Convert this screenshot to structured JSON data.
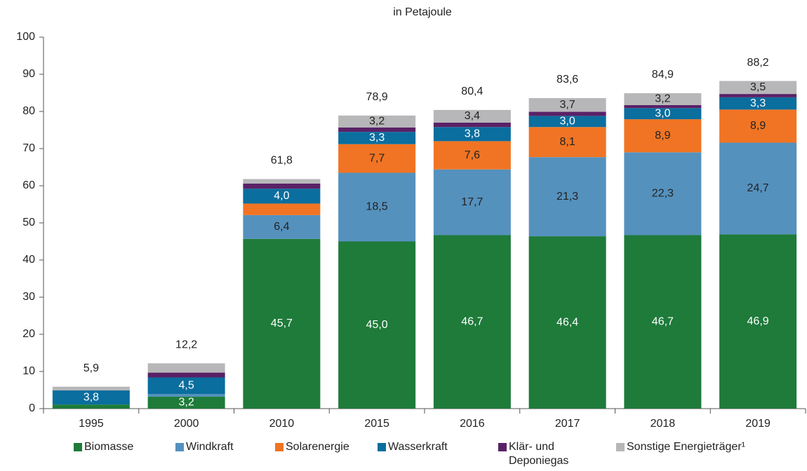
{
  "chart_data": {
    "type": "bar",
    "stacked": true,
    "subtitle": "in Petajoule",
    "categories": [
      "1995",
      "2000",
      "2010",
      "2015",
      "2016",
      "2017",
      "2018",
      "2019"
    ],
    "series": [
      {
        "name": "Biomasse",
        "color": "#1e7b3a",
        "values": [
          1.1,
          3.2,
          45.7,
          45.0,
          46.7,
          46.4,
          46.7,
          46.9
        ],
        "value_labels": [
          null,
          "3,2",
          "45,7",
          "45,0",
          "46,7",
          "46,4",
          "46,7",
          "46,9"
        ]
      },
      {
        "name": "Windkraft",
        "color": "#5591bd",
        "values": [
          0,
          0.7,
          6.4,
          18.5,
          17.7,
          21.3,
          22.3,
          24.7
        ],
        "value_labels": [
          null,
          null,
          "6,4",
          "18,5",
          "17,7",
          "21,3",
          "22,3",
          "24,7"
        ]
      },
      {
        "name": "Solarenergie",
        "color": "#f07423",
        "values": [
          0,
          0,
          3.1,
          7.7,
          7.6,
          8.1,
          8.9,
          8.9
        ],
        "value_labels": [
          null,
          null,
          null,
          "7,7",
          "7,6",
          "8,1",
          "8,9",
          "8,9"
        ]
      },
      {
        "name": "Wasserkraft",
        "color": "#0a6e9e",
        "values": [
          3.8,
          4.5,
          4.0,
          3.3,
          3.8,
          3.0,
          3.0,
          3.3
        ],
        "value_labels": [
          "3,8",
          "4,5",
          "4,0",
          "3,3",
          "3,8",
          "3,0",
          "3,0",
          "3,3"
        ]
      },
      {
        "name": "Klär- und Deponiegas",
        "color": "#5a2167",
        "values": [
          0,
          1.3,
          1.4,
          1.2,
          1.2,
          1.1,
          0.8,
          0.9
        ],
        "value_labels": [
          null,
          null,
          null,
          null,
          null,
          null,
          null,
          null
        ]
      },
      {
        "name": "Sonstige Energieträger¹",
        "color": "#b7b7b9",
        "values": [
          1.0,
          2.5,
          1.2,
          3.2,
          3.4,
          3.7,
          3.2,
          3.5
        ],
        "value_labels": [
          null,
          null,
          null,
          "3,2",
          "3,4",
          "3,7",
          "3,2",
          "3,5"
        ]
      }
    ],
    "totals": [
      5.9,
      12.2,
      61.8,
      78.9,
      80.4,
      83.6,
      84.9,
      88.2
    ],
    "total_labels": [
      "5,9",
      "12,2",
      "61,8",
      "78,9",
      "80,4",
      "83,6",
      "84,9",
      "88,2"
    ],
    "ylim": [
      0,
      100
    ],
    "yticks": [
      0,
      10,
      20,
      30,
      40,
      50,
      60,
      70,
      80,
      90,
      100
    ]
  }
}
